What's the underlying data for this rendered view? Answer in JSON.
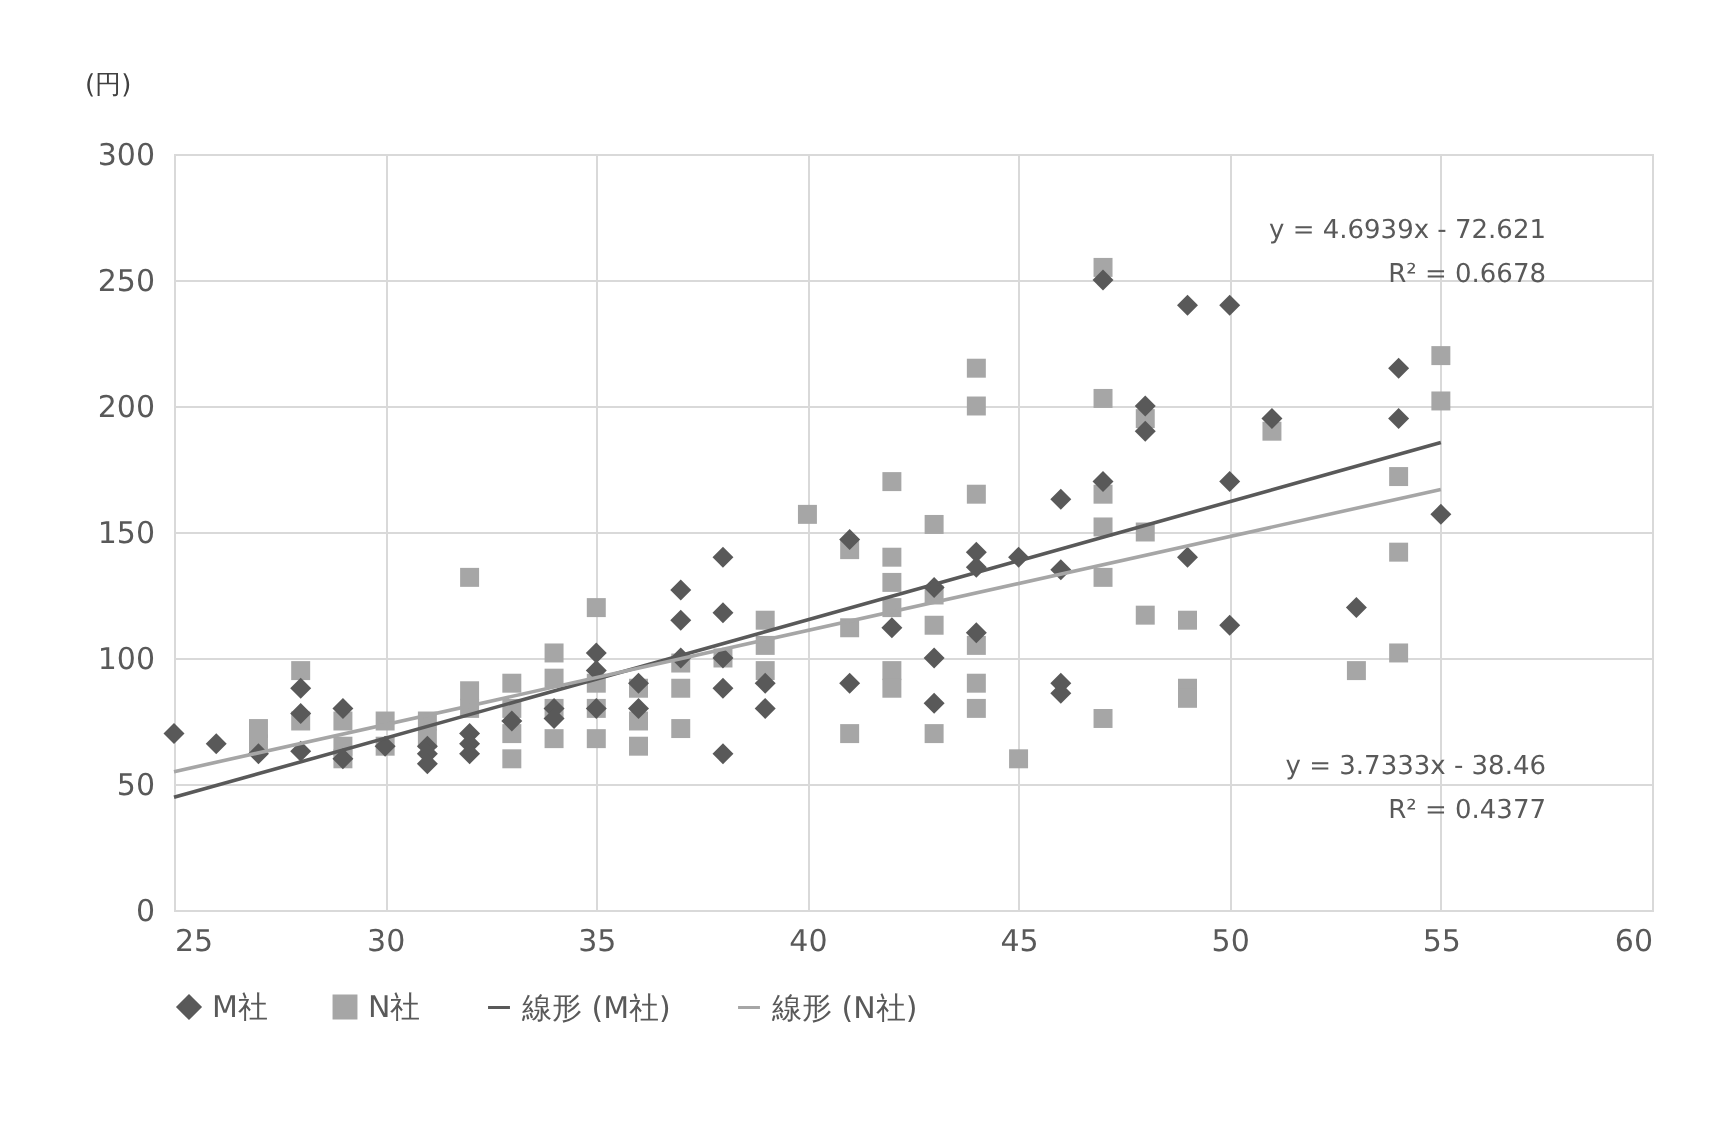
{
  "chart_data": {
    "type": "scatter",
    "ylabel": "(円)",
    "xlim": [
      25,
      60
    ],
    "xticks": [
      25,
      30,
      35,
      40,
      45,
      50,
      55,
      60
    ],
    "ylim": [
      0,
      300
    ],
    "yticks": [
      0,
      50,
      100,
      150,
      200,
      250,
      300
    ],
    "grid": true,
    "legend": "bottom",
    "series": [
      {
        "name": "M社",
        "color": "#595959",
        "marker": "diamond",
        "x": [
          25,
          26,
          27,
          28,
          28,
          28,
          29,
          29,
          30,
          31,
          31,
          31,
          32,
          32,
          32,
          33,
          34,
          34,
          35,
          35,
          35,
          36,
          36,
          37,
          37,
          37,
          38,
          38,
          38,
          38,
          38,
          39,
          39,
          41,
          41,
          42,
          43,
          43,
          43,
          44,
          44,
          44,
          45,
          46,
          46,
          46,
          46,
          47,
          47,
          48,
          48,
          49,
          49,
          50,
          50,
          50,
          51,
          53,
          54,
          54,
          55
        ],
        "values": [
          70,
          66,
          62,
          88,
          78,
          63,
          80,
          60,
          65,
          65,
          62,
          58,
          70,
          66,
          62,
          75,
          80,
          76,
          102,
          95,
          80,
          90,
          80,
          127,
          115,
          100,
          140,
          118,
          100,
          88,
          62,
          90,
          80,
          147,
          90,
          112,
          128,
          100,
          82,
          142,
          136,
          110,
          140,
          163,
          135,
          90,
          86,
          250,
          170,
          200,
          190,
          240,
          140,
          240,
          170,
          113,
          195,
          120,
          215,
          195,
          157
        ]
      },
      {
        "name": "N社",
        "color": "#a6a6a6",
        "marker": "square",
        "x": [
          27,
          27,
          28,
          28,
          29,
          29,
          29,
          30,
          30,
          31,
          31,
          32,
          32,
          32,
          33,
          33,
          33,
          33,
          34,
          34,
          34,
          34,
          35,
          35,
          35,
          35,
          36,
          36,
          36,
          37,
          37,
          37,
          38,
          39,
          39,
          39,
          40,
          41,
          41,
          41,
          42,
          42,
          42,
          42,
          42,
          42,
          43,
          43,
          43,
          43,
          44,
          44,
          44,
          44,
          44,
          44,
          45,
          47,
          47,
          47,
          47,
          47,
          47,
          48,
          48,
          48,
          49,
          49,
          49,
          51,
          53,
          54,
          54,
          54,
          55,
          55
        ],
        "values": [
          72,
          66,
          95,
          75,
          75,
          65,
          60,
          75,
          65,
          75,
          68,
          132,
          87,
          80,
          90,
          80,
          70,
          60,
          102,
          92,
          80,
          68,
          120,
          90,
          80,
          68,
          88,
          75,
          65,
          98,
          88,
          72,
          100,
          115,
          105,
          95,
          157,
          143,
          112,
          70,
          170,
          140,
          130,
          120,
          95,
          88,
          153,
          125,
          113,
          70,
          215,
          200,
          165,
          105,
          90,
          80,
          60,
          255,
          203,
          165,
          152,
          132,
          76,
          195,
          150,
          117,
          115,
          88,
          84,
          190,
          95,
          172,
          142,
          102,
          220,
          202
        ]
      },
      {
        "name": "線形 (M社)",
        "type": "line",
        "color": "#595959",
        "marker": "none",
        "line_style": "solid",
        "x": [
          25,
          55
        ],
        "values": [
          44.7,
          185.5
        ]
      },
      {
        "name": "線形 (N社)",
        "type": "line",
        "color": "#a6a6a6",
        "marker": "none",
        "line_style": "solid",
        "x": [
          25,
          55
        ],
        "values": [
          54.9,
          166.9
        ]
      }
    ],
    "annotations": [
      "y = 4.6939x - 72.621",
      "R² = 0.6678",
      "y = 3.7333x - 38.46",
      "R² = 0.4377"
    ]
  }
}
